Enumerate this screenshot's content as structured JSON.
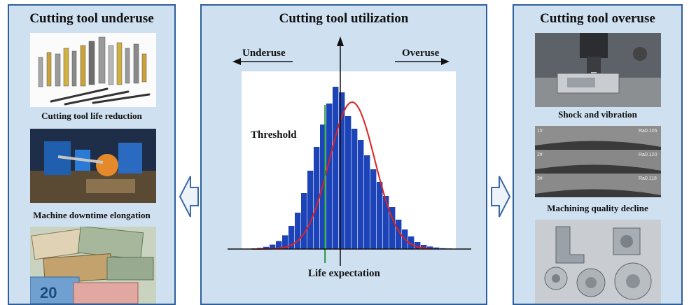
{
  "left": {
    "title": "Cutting tool underuse",
    "captions": [
      "Cutting tool life reduction",
      "Machine downtime elongation"
    ],
    "currency_note": "20"
  },
  "center": {
    "title": "Cutting tool utilization",
    "underuse_label": "Underuse",
    "overuse_label": "Overuse",
    "threshold_label": "Threshold",
    "xlabel": "Life expectation"
  },
  "right": {
    "title": "Cutting tool overuse",
    "captions": [
      "Shock and vibration",
      "Machining quality decline"
    ],
    "strip_labels": [
      {
        "num": "1#",
        "ra": "Ra0.105"
      },
      {
        "num": "2#",
        "ra": "Ra0.120"
      },
      {
        "num": "3#",
        "ra": "Ra0.118"
      }
    ]
  },
  "colors": {
    "panel_bg": "#cfe1f1",
    "panel_border": "#2f5f9a",
    "bars": "#1c44b8",
    "curve": "#e02020",
    "threshold": "#1e9a3a"
  },
  "chart_data": {
    "type": "bar",
    "title": "",
    "xlabel": "Life expectation",
    "ylabel": "",
    "values": [
      0.4,
      0.8,
      1.6,
      3.2,
      5.7,
      9.8,
      16.5,
      26,
      40,
      56,
      73,
      89,
      104,
      116,
      112,
      95,
      86,
      78,
      67,
      57,
      48,
      38,
      30,
      21,
      14,
      9,
      5,
      3,
      1.8,
      1.1,
      0.6,
      0.4
    ],
    "curve": {
      "type": "normal",
      "peak": 105
    },
    "ylim": [
      0,
      125
    ],
    "threshold_bin": 12,
    "mean_bin": 16
  }
}
